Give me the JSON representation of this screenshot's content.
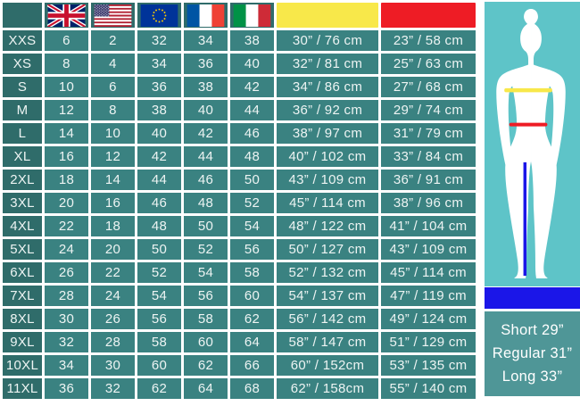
{
  "chart_data": {
    "type": "table",
    "columns": [
      {
        "key": "size",
        "header": "blank-corner"
      },
      {
        "key": "uk",
        "header": "uk-flag"
      },
      {
        "key": "us",
        "header": "us-flag"
      },
      {
        "key": "eu",
        "header": "eu-flag"
      },
      {
        "key": "fr",
        "header": "france-flag"
      },
      {
        "key": "it",
        "header": "italy-flag"
      },
      {
        "key": "bust",
        "header": "yellow-bar-bust"
      },
      {
        "key": "waist",
        "header": "red-bar-waist"
      }
    ],
    "rows": [
      {
        "size": "XXS",
        "uk": "6",
        "us": "2",
        "eu": "32",
        "fr": "34",
        "it": "38",
        "bust": "30” / 76 cm",
        "waist": "23” / 58 cm"
      },
      {
        "size": "XS",
        "uk": "8",
        "us": "4",
        "eu": "34",
        "fr": "36",
        "it": "40",
        "bust": "32” / 81 cm",
        "waist": "25” / 63 cm"
      },
      {
        "size": "S",
        "uk": "10",
        "us": "6",
        "eu": "36",
        "fr": "38",
        "it": "42",
        "bust": "34” / 86 cm",
        "waist": "27” / 68 cm"
      },
      {
        "size": "M",
        "uk": "12",
        "us": "8",
        "eu": "38",
        "fr": "40",
        "it": "44",
        "bust": "36” / 92 cm",
        "waist": "29” / 74 cm"
      },
      {
        "size": "L",
        "uk": "14",
        "us": "10",
        "eu": "40",
        "fr": "42",
        "it": "46",
        "bust": "38” / 97 cm",
        "waist": "31” / 79 cm"
      },
      {
        "size": "XL",
        "uk": "16",
        "us": "12",
        "eu": "42",
        "fr": "44",
        "it": "48",
        "bust": "40” / 102 cm",
        "waist": "33” / 84 cm"
      },
      {
        "size": "2XL",
        "uk": "18",
        "us": "14",
        "eu": "44",
        "fr": "46",
        "it": "50",
        "bust": "43” / 109 cm",
        "waist": "36” / 91 cm"
      },
      {
        "size": "3XL",
        "uk": "20",
        "us": "16",
        "eu": "46",
        "fr": "48",
        "it": "52",
        "bust": "45” / 114 cm",
        "waist": "38” / 96 cm"
      },
      {
        "size": "4XL",
        "uk": "22",
        "us": "18",
        "eu": "48",
        "fr": "50",
        "it": "54",
        "bust": "48” / 122 cm",
        "waist": "41” / 104 cm"
      },
      {
        "size": "5XL",
        "uk": "24",
        "us": "20",
        "eu": "50",
        "fr": "52",
        "it": "56",
        "bust": "50” / 127 cm",
        "waist": "43” / 109 cm"
      },
      {
        "size": "6XL",
        "uk": "26",
        "us": "22",
        "eu": "52",
        "fr": "54",
        "it": "58",
        "bust": "52” / 132 cm",
        "waist": "45” / 114 cm"
      },
      {
        "size": "7XL",
        "uk": "28",
        "us": "24",
        "eu": "54",
        "fr": "56",
        "it": "60",
        "bust": "54” / 137 cm",
        "waist": "47” / 119 cm"
      },
      {
        "size": "8XL",
        "uk": "30",
        "us": "26",
        "eu": "56",
        "fr": "58",
        "it": "62",
        "bust": "56” / 142 cm",
        "waist": "49” / 124 cm"
      },
      {
        "size": "9XL",
        "uk": "32",
        "us": "28",
        "eu": "58",
        "fr": "60",
        "it": "64",
        "bust": "58” / 147 cm",
        "waist": "51” / 129 cm"
      },
      {
        "size": "10XL",
        "uk": "34",
        "us": "30",
        "eu": "60",
        "fr": "62",
        "it": "66",
        "bust": "60” / 152cm",
        "waist": "53” / 135 cm"
      },
      {
        "size": "11XL",
        "uk": "36",
        "us": "32",
        "eu": "62",
        "fr": "64",
        "it": "68",
        "bust": "62” / 158cm",
        "waist": "55” / 140 cm"
      }
    ]
  },
  "side_panel": {
    "lengths": [
      "Short 29”",
      "Regular 31”",
      "Long 33”"
    ],
    "figure_lines": [
      "bust-line-yellow",
      "waist-line-red",
      "inseam-line-blue"
    ]
  },
  "colors": {
    "label_teal": "#2F6C6A",
    "cell_teal": "#3A8281",
    "bust_header": "#F8E84A",
    "waist_header": "#EE1C25",
    "figure_bg": "#5EC4C8",
    "silhouette": "#FFFFFF",
    "bust_line": "#F8E84A",
    "waist_line": "#EE1C25",
    "inseam_line": "#1B16E8",
    "inseam_bar": "#1B16E8",
    "length_panel_bg": "#4F9697",
    "cell_text": "#EDF4F3"
  }
}
